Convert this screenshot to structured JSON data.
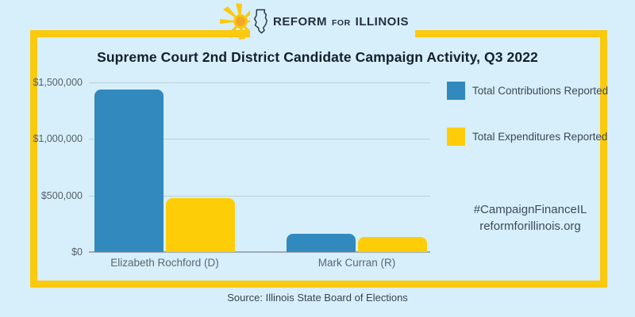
{
  "logo": {
    "reform": "REFORM",
    "for": "FOR",
    "illinois": "ILLINOIS"
  },
  "title": "Supreme Court 2nd District Candidate Campaign Activity, Q3 2022",
  "chart_data": {
    "type": "bar",
    "categories": [
      "Elizabeth Rochford (D)",
      "Mark Curran (R)"
    ],
    "series": [
      {
        "name": "Total Contributions Reported",
        "color": "#3289be",
        "values": [
          1440000,
          160000
        ]
      },
      {
        "name": "Total Expenditures Reported",
        "color": "#fdce07",
        "values": [
          475000,
          130000
        ]
      }
    ],
    "title": "Supreme Court 2nd District Candidate Campaign Activity, Q3 2022",
    "xlabel": "",
    "ylabel": "",
    "ylim": [
      0,
      1500000
    ],
    "yticks": [
      0,
      500000,
      1000000,
      1500000
    ],
    "ytick_labels": [
      "$0",
      "$500,000",
      "$1,000,000",
      "$1,500,000"
    ],
    "grid": true,
    "legend_position": "right"
  },
  "social": {
    "hashtag": "#CampaignFinanceIL",
    "website": "reformforillinois.org"
  },
  "source": "Source: Illinois State Board of Elections",
  "colors": {
    "background": "#d7effa",
    "frame_yellow": "#fbc90e",
    "contributions_blue": "#3289be",
    "expenditures_yellow": "#fdce07"
  }
}
